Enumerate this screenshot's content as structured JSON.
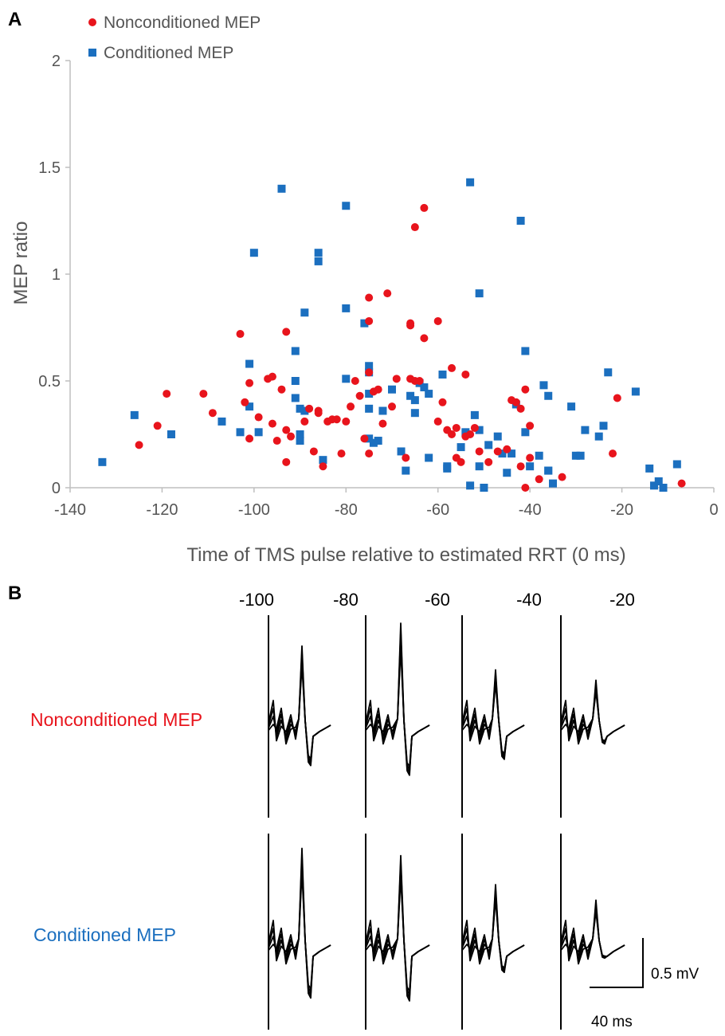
{
  "panel_a_label": "A",
  "panel_b_label": "B",
  "colors": {
    "nonconditioned": "#e8141c",
    "conditioned": "#1b6fbf",
    "axis": "#bfbfbf",
    "text": "#555555"
  },
  "chart_data": {
    "type": "scatter",
    "title": "",
    "xlabel": "Time of TMS pulse relative to estimated RRT (0 ms)",
    "ylabel": "MEP ratio",
    "xlim": [
      -140,
      0
    ],
    "ylim": [
      0,
      2
    ],
    "x_ticks": [
      "-140",
      "-120",
      "-100",
      "-80",
      "-60",
      "-40",
      "-20",
      "0"
    ],
    "y_ticks": [
      "0",
      "0.5",
      "1",
      "1.5",
      "2"
    ],
    "legend_position": "top-left",
    "series": [
      {
        "name": "Nonconditioned MEP",
        "marker": "circle",
        "points": [
          [
            -125,
            0.2
          ],
          [
            -121,
            0.29
          ],
          [
            -119,
            0.44
          ],
          [
            -111,
            0.44
          ],
          [
            -109,
            0.35
          ],
          [
            -103,
            0.72
          ],
          [
            -102,
            0.4
          ],
          [
            -101,
            0.23
          ],
          [
            -101,
            0.49
          ],
          [
            -99,
            0.33
          ],
          [
            -97,
            0.51
          ],
          [
            -96,
            0.3
          ],
          [
            -96,
            0.52
          ],
          [
            -95,
            0.22
          ],
          [
            -94,
            0.46
          ],
          [
            -93,
            0.73
          ],
          [
            -93,
            0.27
          ],
          [
            -93,
            0.12
          ],
          [
            -92,
            0.24
          ],
          [
            -89,
            0.31
          ],
          [
            -88,
            0.37
          ],
          [
            -87,
            0.17
          ],
          [
            -86,
            0.36
          ],
          [
            -86,
            0.35
          ],
          [
            -85,
            0.1
          ],
          [
            -84,
            0.31
          ],
          [
            -83,
            0.32
          ],
          [
            -82,
            0.32
          ],
          [
            -81,
            0.16
          ],
          [
            -80,
            0.31
          ],
          [
            -79,
            0.38
          ],
          [
            -78,
            0.5
          ],
          [
            -77,
            0.43
          ],
          [
            -76,
            0.23
          ],
          [
            -75,
            0.78
          ],
          [
            -75,
            0.89
          ],
          [
            -75,
            0.54
          ],
          [
            -75,
            0.16
          ],
          [
            -74,
            0.45
          ],
          [
            -73,
            0.46
          ],
          [
            -72,
            0.3
          ],
          [
            -71,
            0.91
          ],
          [
            -70,
            0.38
          ],
          [
            -69,
            0.51
          ],
          [
            -67,
            0.14
          ],
          [
            -66,
            0.51
          ],
          [
            -66,
            0.77
          ],
          [
            -66,
            0.76
          ],
          [
            -65,
            0.5
          ],
          [
            -65,
            1.22
          ],
          [
            -64,
            0.5
          ],
          [
            -63,
            1.31
          ],
          [
            -63,
            0.7
          ],
          [
            -60,
            0.78
          ],
          [
            -60,
            0.31
          ],
          [
            -59,
            0.4
          ],
          [
            -58,
            0.27
          ],
          [
            -57,
            0.56
          ],
          [
            -57,
            0.25
          ],
          [
            -56,
            0.14
          ],
          [
            -56,
            0.28
          ],
          [
            -55,
            0.12
          ],
          [
            -54,
            0.24
          ],
          [
            -54,
            0.53
          ],
          [
            -53,
            0.25
          ],
          [
            -52,
            0.28
          ],
          [
            -51,
            0.17
          ],
          [
            -49,
            0.12
          ],
          [
            -47,
            0.17
          ],
          [
            -45,
            0.18
          ],
          [
            -44,
            0.41
          ],
          [
            -43,
            0.4
          ],
          [
            -42,
            0.37
          ],
          [
            -42,
            0.1
          ],
          [
            -41,
            0.46
          ],
          [
            -41,
            0.0
          ],
          [
            -40,
            0.14
          ],
          [
            -40,
            0.29
          ],
          [
            -38,
            0.04
          ],
          [
            -33,
            0.05
          ],
          [
            -22,
            0.16
          ],
          [
            -21,
            0.42
          ],
          [
            -7,
            0.02
          ]
        ]
      },
      {
        "name": "Conditioned MEP",
        "marker": "square",
        "points": [
          [
            -133,
            0.12
          ],
          [
            -126,
            0.34
          ],
          [
            -118,
            0.25
          ],
          [
            -107,
            0.31
          ],
          [
            -103,
            0.26
          ],
          [
            -101,
            0.38
          ],
          [
            -101,
            0.58
          ],
          [
            -100,
            1.1
          ],
          [
            -99,
            0.26
          ],
          [
            -94,
            1.4
          ],
          [
            -91,
            0.64
          ],
          [
            -91,
            0.5
          ],
          [
            -91,
            0.42
          ],
          [
            -90,
            0.37
          ],
          [
            -90,
            0.22
          ],
          [
            -90,
            0.25
          ],
          [
            -89,
            0.82
          ],
          [
            -89,
            0.36
          ],
          [
            -86,
            1.1
          ],
          [
            -86,
            1.06
          ],
          [
            -85,
            0.13
          ],
          [
            -80,
            1.32
          ],
          [
            -80,
            0.84
          ],
          [
            -80,
            0.51
          ],
          [
            -76,
            0.77
          ],
          [
            -75,
            0.23
          ],
          [
            -75,
            0.57
          ],
          [
            -75,
            0.54
          ],
          [
            -75,
            0.44
          ],
          [
            -75,
            0.37
          ],
          [
            -74,
            0.21
          ],
          [
            -73,
            0.22
          ],
          [
            -72,
            0.36
          ],
          [
            -70,
            0.46
          ],
          [
            -68,
            0.17
          ],
          [
            -67,
            0.08
          ],
          [
            -66,
            0.43
          ],
          [
            -65,
            0.41
          ],
          [
            -65,
            0.35
          ],
          [
            -64,
            0.49
          ],
          [
            -63,
            0.47
          ],
          [
            -62,
            0.44
          ],
          [
            -62,
            0.14
          ],
          [
            -59,
            0.53
          ],
          [
            -58,
            0.09
          ],
          [
            -58,
            0.1
          ],
          [
            -55,
            0.19
          ],
          [
            -54,
            0.26
          ],
          [
            -53,
            0.01
          ],
          [
            -53,
            1.43
          ],
          [
            -52,
            0.34
          ],
          [
            -51,
            0.91
          ],
          [
            -51,
            0.27
          ],
          [
            -51,
            0.1
          ],
          [
            -50,
            0.0
          ],
          [
            -49,
            0.2
          ],
          [
            -47,
            0.24
          ],
          [
            -46,
            0.16
          ],
          [
            -45,
            0.07
          ],
          [
            -44,
            0.16
          ],
          [
            -43,
            0.39
          ],
          [
            -42,
            1.25
          ],
          [
            -41,
            0.64
          ],
          [
            -41,
            0.26
          ],
          [
            -40,
            0.1
          ],
          [
            -38,
            0.15
          ],
          [
            -37,
            0.48
          ],
          [
            -36,
            0.43
          ],
          [
            -36,
            0.08
          ],
          [
            -36,
            0.08
          ],
          [
            -35,
            0.02
          ],
          [
            -31,
            0.38
          ],
          [
            -30,
            0.15
          ],
          [
            -29,
            0.15
          ],
          [
            -28,
            0.27
          ],
          [
            -25,
            0.24
          ],
          [
            -24,
            0.29
          ],
          [
            -23,
            0.54
          ],
          [
            -17,
            0.45
          ],
          [
            -14,
            0.09
          ],
          [
            -13,
            0.01
          ],
          [
            -12,
            0.03
          ],
          [
            -11,
            0.0
          ],
          [
            -8,
            0.11
          ]
        ]
      }
    ]
  },
  "panel_b": {
    "time_labels": [
      "-100",
      "-80",
      "-60",
      "-40",
      "-20"
    ],
    "row_labels": [
      "Nonconditioned MEP",
      "Conditioned MEP"
    ],
    "scale_bar": {
      "amplitude": "0.5 mV",
      "time": "40 ms"
    },
    "trace_peaks": {
      "nonconditioned": [
        {
          "peak": 0.78,
          "trough": 0.68
        },
        {
          "peak": 1.0,
          "trough": 0.85
        },
        {
          "peak": 0.55,
          "trough": 0.57
        },
        {
          "peak": 0.45,
          "trough": 0.3
        }
      ],
      "conditioned": [
        {
          "peak": 0.95,
          "trough": 0.9
        },
        {
          "peak": 0.88,
          "trough": 0.95
        },
        {
          "peak": 0.6,
          "trough": 0.45
        },
        {
          "peak": 0.45,
          "trough": 0.2
        }
      ]
    }
  }
}
